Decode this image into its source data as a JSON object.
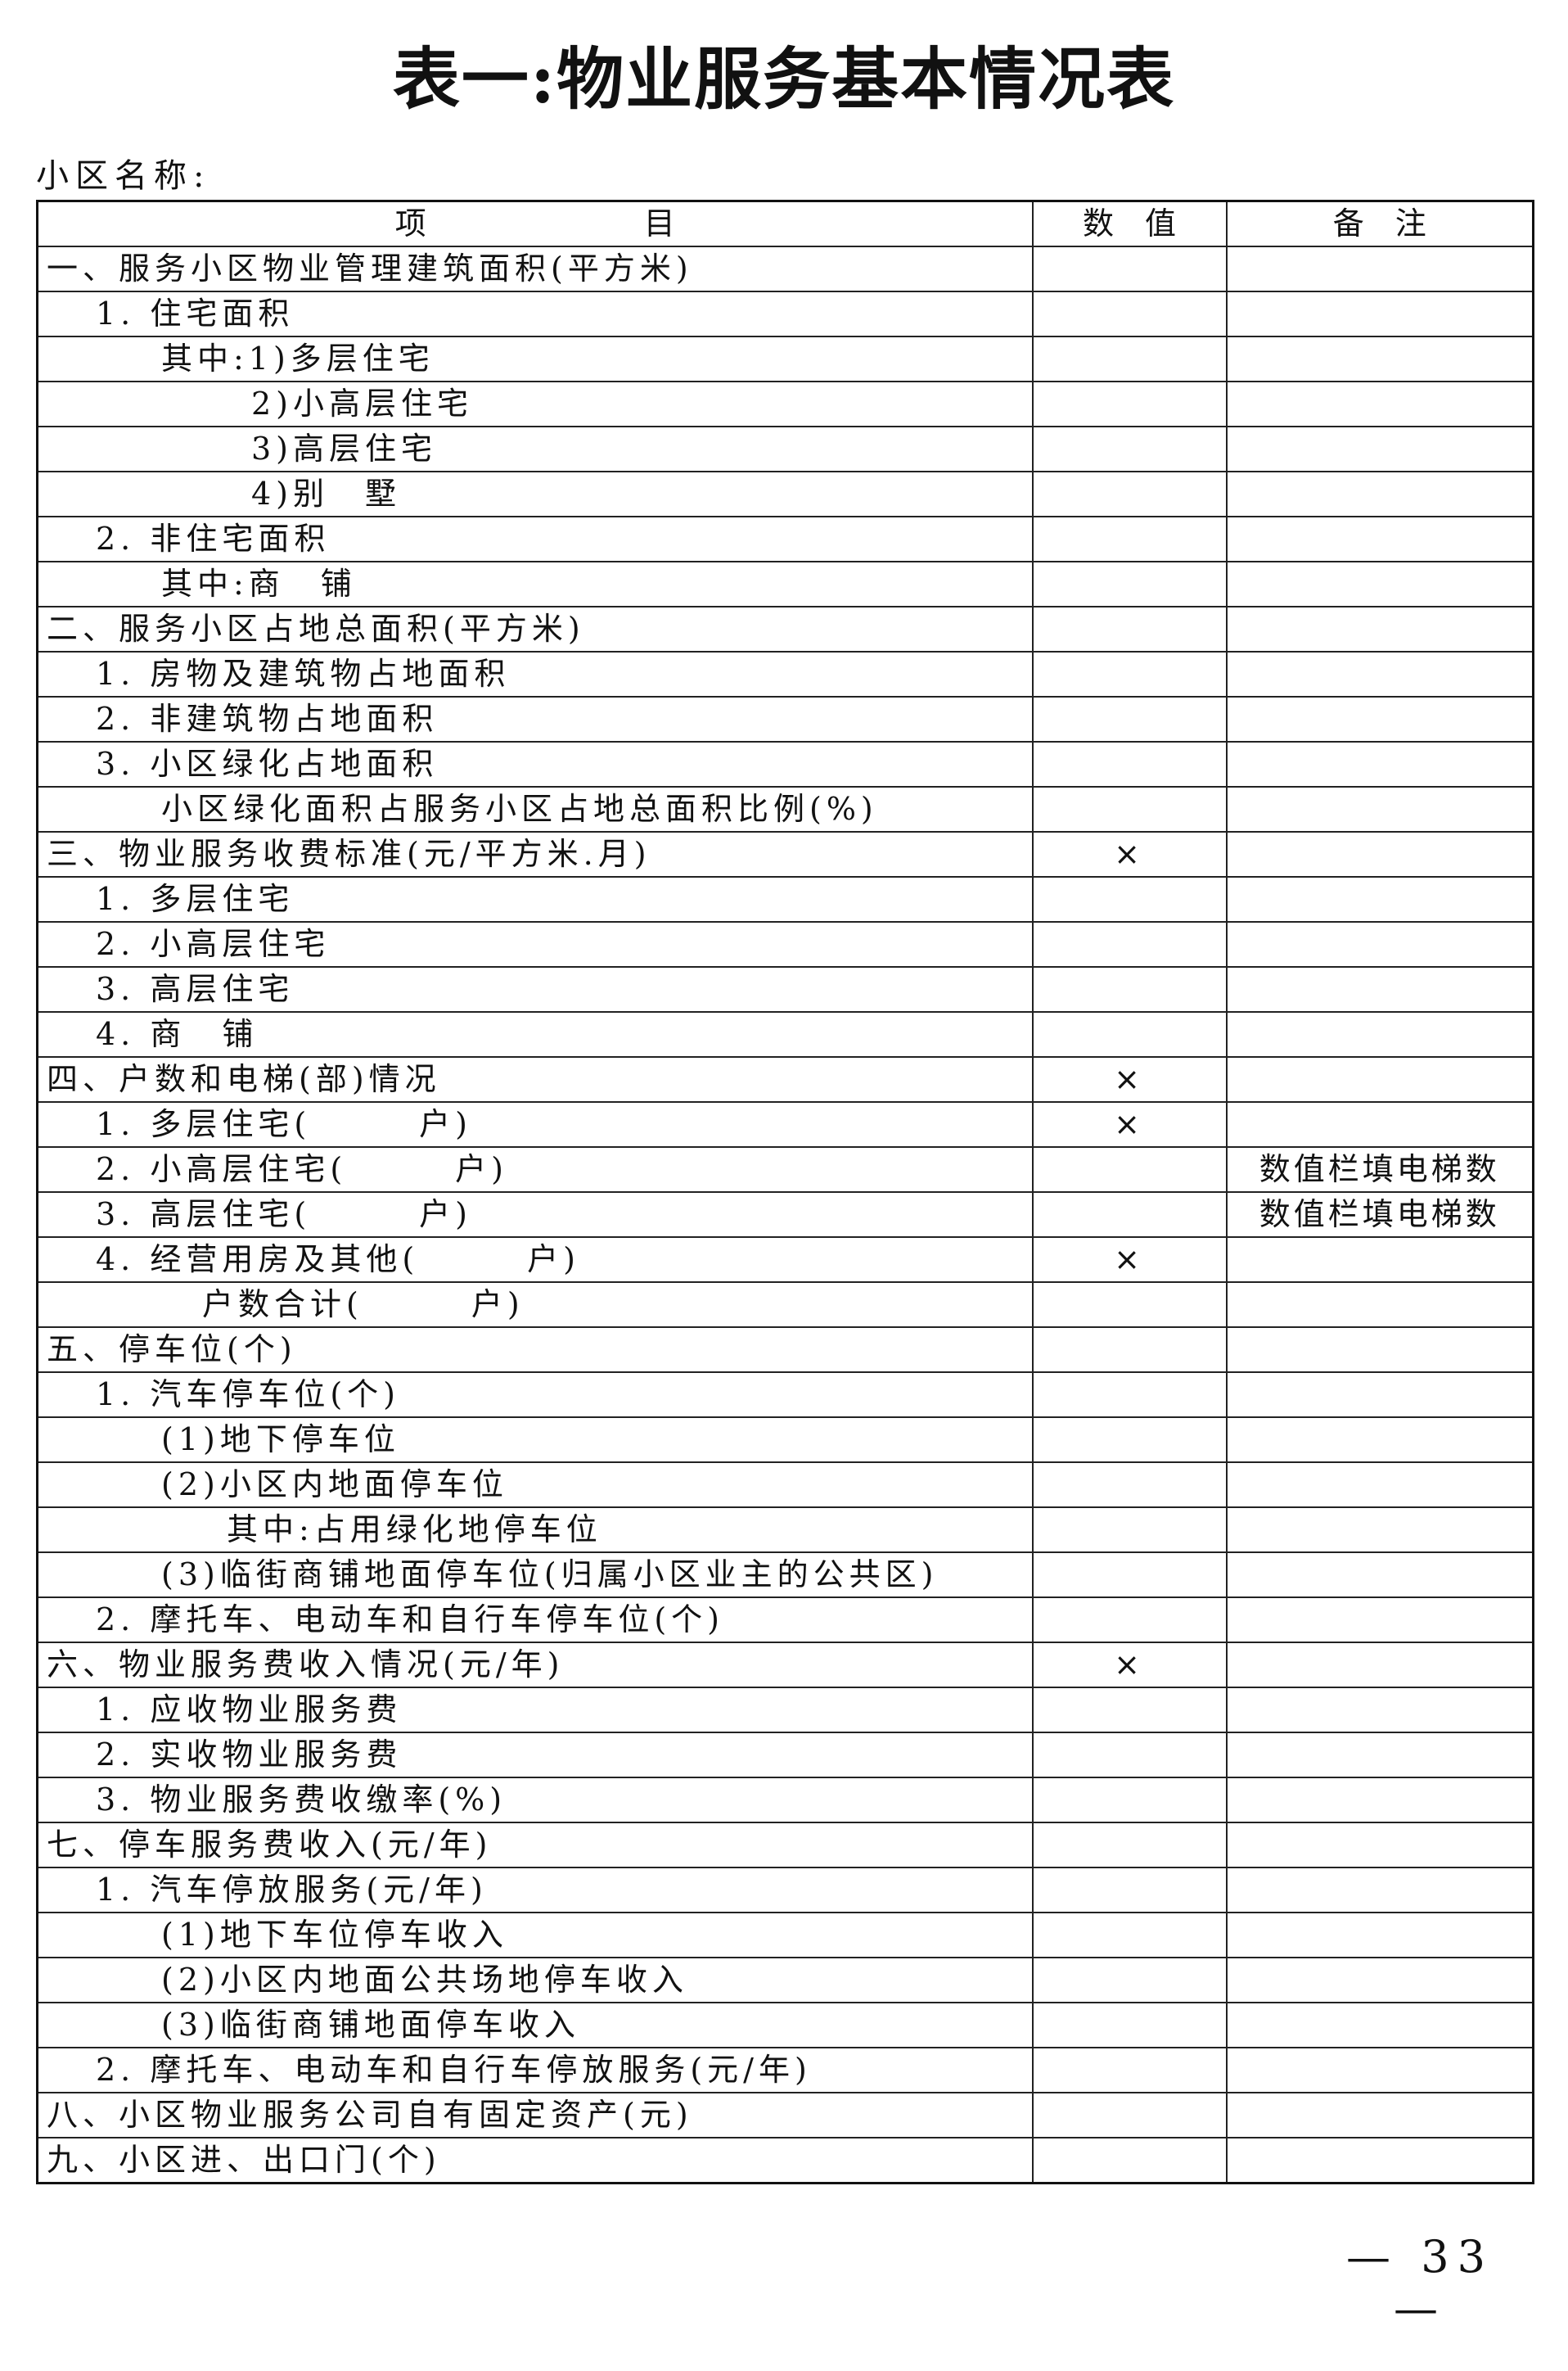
{
  "title": "表一:物业服务基本情况表",
  "community_label": "小区名称:",
  "table": {
    "headers": [
      "项　　　　　　　目",
      "数　值",
      "备　注"
    ],
    "rows": [
      {
        "item": "一、服务小区物业管理建筑面积(平方米)",
        "value": "",
        "note": ""
      },
      {
        "item": "1. 住宅面积",
        "value": "",
        "note": ""
      },
      {
        "item": "其中:1)多层住宅",
        "value": "",
        "note": ""
      },
      {
        "item": "2)小高层住宅",
        "value": "",
        "note": ""
      },
      {
        "item": "3)高层住宅",
        "value": "",
        "note": ""
      },
      {
        "item": "4)别　墅",
        "value": "",
        "note": ""
      },
      {
        "item": "2. 非住宅面积",
        "value": "",
        "note": ""
      },
      {
        "item": "其中:商　铺",
        "value": "",
        "note": ""
      },
      {
        "item": "二、服务小区占地总面积(平方米)",
        "value": "",
        "note": ""
      },
      {
        "item": "1. 房物及建筑物占地面积",
        "value": "",
        "note": ""
      },
      {
        "item": "2. 非建筑物占地面积",
        "value": "",
        "note": ""
      },
      {
        "item": "3. 小区绿化占地面积",
        "value": "",
        "note": ""
      },
      {
        "item": "小区绿化面积占服务小区占地总面积比例(%)",
        "value": "",
        "note": ""
      },
      {
        "item": "三、物业服务收费标准(元/平方米.月)",
        "value": "×",
        "note": ""
      },
      {
        "item": "1. 多层住宅",
        "value": "",
        "note": ""
      },
      {
        "item": "2. 小高层住宅",
        "value": "",
        "note": ""
      },
      {
        "item": "3. 高层住宅",
        "value": "",
        "note": ""
      },
      {
        "item": "4. 商　铺",
        "value": "",
        "note": ""
      },
      {
        "item": "四、户数和电梯(部)情况",
        "value": "×",
        "note": ""
      },
      {
        "item": "1. 多层住宅(　　　户)",
        "value": "×",
        "note": ""
      },
      {
        "item": "2. 小高层住宅(　　　户)",
        "value": "",
        "note": "数值栏填电梯数"
      },
      {
        "item": "3. 高层住宅(　　　户)",
        "value": "",
        "note": "数值栏填电梯数"
      },
      {
        "item": "4. 经营用房及其他(　　　户)",
        "value": "×",
        "note": ""
      },
      {
        "item": "户数合计(　　　户)",
        "value": "",
        "note": ""
      },
      {
        "item": "五、停车位(个)",
        "value": "",
        "note": ""
      },
      {
        "item": "1. 汽车停车位(个)",
        "value": "",
        "note": ""
      },
      {
        "item": "(1)地下停车位",
        "value": "",
        "note": ""
      },
      {
        "item": "(2)小区内地面停车位",
        "value": "",
        "note": ""
      },
      {
        "item": "其中:占用绿化地停车位",
        "value": "",
        "note": ""
      },
      {
        "item": "(3)临街商铺地面停车位(归属小区业主的公共区)",
        "value": "",
        "note": ""
      },
      {
        "item": "2. 摩托车、电动车和自行车停车位(个)",
        "value": "",
        "note": ""
      },
      {
        "item": "六、物业服务费收入情况(元/年)",
        "value": "×",
        "note": ""
      },
      {
        "item": "1. 应收物业服务费",
        "value": "",
        "note": ""
      },
      {
        "item": "2. 实收物业服务费",
        "value": "",
        "note": ""
      },
      {
        "item": "3. 物业服务费收缴率(%)",
        "value": "",
        "note": ""
      },
      {
        "item": "七、停车服务费收入(元/年)",
        "value": "",
        "note": ""
      },
      {
        "item": "1. 汽车停放服务(元/年)",
        "value": "",
        "note": ""
      },
      {
        "item": "(1)地下车位停车收入",
        "value": "",
        "note": ""
      },
      {
        "item": "(2)小区内地面公共场地停车收入",
        "value": "",
        "note": ""
      },
      {
        "item": "(3)临街商铺地面停车收入",
        "value": "",
        "note": ""
      },
      {
        "item": "2. 摩托车、电动车和自行车停放服务(元/年)",
        "value": "",
        "note": ""
      },
      {
        "item": "八、小区物业服务公司自有固定资产(元)",
        "value": "",
        "note": ""
      },
      {
        "item": "九、小区进、出口门(个)",
        "value": "",
        "note": ""
      }
    ]
  },
  "page_number": "— 33 —"
}
